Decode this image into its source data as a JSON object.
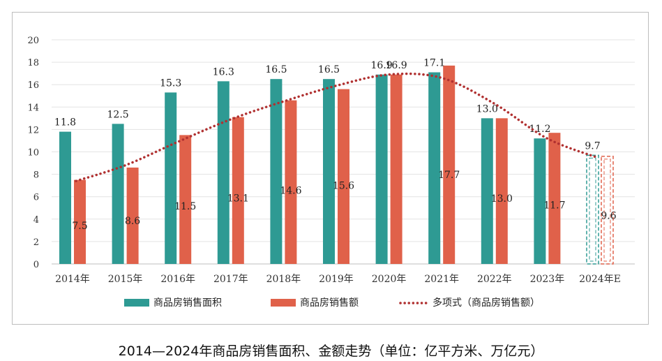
{
  "caption": "2014—2024年商品房销售面积、金额走势（单位：亿平方米、万亿元）",
  "chart_data": {
    "type": "bar",
    "categories": [
      "2014年",
      "2015年",
      "2016年",
      "2017年",
      "2018年",
      "2019年",
      "2020年",
      "2021年",
      "2022年",
      "2023年",
      "2024年E"
    ],
    "series": [
      {
        "name": "商品房销售面积",
        "color": "#2e9a93",
        "values": [
          11.8,
          12.5,
          15.3,
          16.3,
          16.5,
          16.5,
          16.9,
          17.1,
          13.0,
          11.2,
          9.7
        ],
        "labels": [
          "11.8",
          "12.5",
          "15.3",
          "16.3",
          "16.5",
          "16.5",
          "16.9",
          "17.1",
          "13.0",
          "11.2",
          "9.7"
        ]
      },
      {
        "name": "商品房销售额",
        "color": "#e0614a",
        "values": [
          7.5,
          8.6,
          11.5,
          13.1,
          14.6,
          15.6,
          16.9,
          17.7,
          13.0,
          11.7,
          9.6
        ],
        "labels": [
          "7.5",
          "8.6",
          "11.5",
          "13.1",
          "14.6",
          "15.6",
          "16.9",
          "17.7",
          "13.0",
          "11.7",
          "9.6"
        ]
      }
    ],
    "trendline": {
      "name": "多项式（商品房销售额）",
      "type": "polynomial",
      "color": "#b03030",
      "values": [
        7.4,
        8.8,
        10.9,
        12.9,
        14.5,
        15.9,
        16.9,
        16.6,
        14.3,
        11.2,
        9.5
      ]
    },
    "estimated_category": "2024年E",
    "ylim": [
      0,
      20
    ],
    "yticks": [
      "0",
      "2",
      "4",
      "6",
      "8",
      "10",
      "12",
      "14",
      "16",
      "18",
      "20"
    ],
    "grid": true,
    "legend_position": "bottom"
  }
}
